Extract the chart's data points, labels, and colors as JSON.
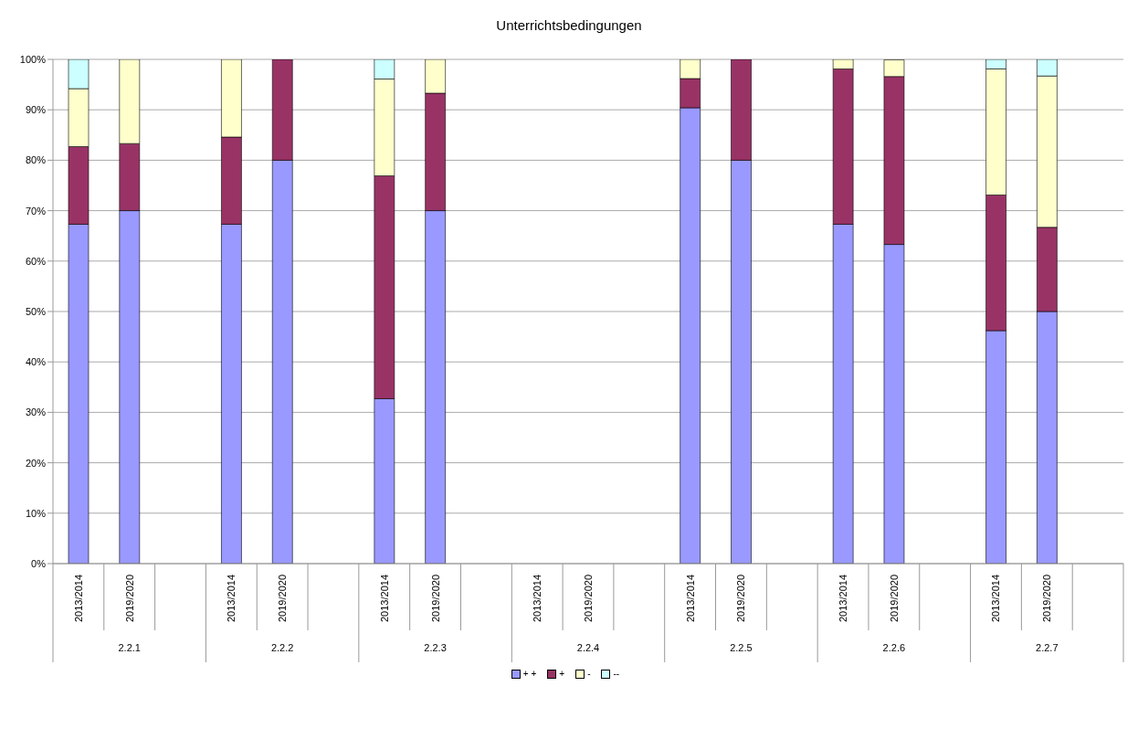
{
  "chart_data": {
    "type": "bar",
    "title": "Unterrichtsbedingungen",
    "stacked": true,
    "categories": [
      "2013/2014",
      "2019/2020",
      null,
      "2013/2014",
      "2019/2020",
      null,
      "2013/2014",
      "2019/2020",
      null,
      "2013/2014",
      "2019/2020",
      null,
      "2013/2014",
      "2019/2020",
      null,
      "2013/2014",
      "2019/2020",
      null,
      "2013/2014",
      "2019/2020",
      null
    ],
    "annotations": [
      "2.2.1",
      "2.2.2",
      "2.2.3",
      "2.2.4",
      "2.2.5",
      "2.2.6",
      "2.2.7"
    ],
    "series": [
      {
        "name": "+ +",
        "color": "#9999ff",
        "values": [
          67.3,
          70,
          null,
          67.3,
          80,
          null,
          32.7,
          70,
          null,
          null,
          null,
          null,
          90.4,
          80,
          null,
          67.3,
          63.3,
          null,
          46.2,
          50,
          null
        ]
      },
      {
        "name": "+",
        "color": "#993366",
        "values": [
          15.4,
          13.3,
          null,
          17.3,
          20,
          null,
          44.2,
          23.3,
          null,
          null,
          null,
          null,
          5.8,
          20,
          null,
          30.8,
          33.3,
          null,
          26.9,
          16.7,
          null
        ]
      },
      {
        "name": "-",
        "color": "#ffffcc",
        "values": [
          11.5,
          16.7,
          null,
          15.4,
          0,
          null,
          19.2,
          6.7,
          null,
          null,
          null,
          null,
          3.8,
          0,
          null,
          1.9,
          3.3,
          null,
          25,
          30,
          null
        ]
      },
      {
        "name": "--",
        "color": "#ccffff",
        "values": [
          5.8,
          0,
          null,
          0,
          0,
          null,
          3.9,
          0,
          null,
          null,
          null,
          null,
          0,
          0,
          null,
          0,
          0,
          null,
          1.9,
          3.3,
          null
        ]
      }
    ],
    "ylim": [
      0,
      100
    ],
    "yticks": [
      {
        "value": 0,
        "label": "0%"
      },
      {
        "value": 10,
        "label": "10%"
      },
      {
        "value": 20,
        "label": "20%"
      },
      {
        "value": 30,
        "label": "30%"
      },
      {
        "value": 40,
        "label": "40%"
      },
      {
        "value": 50,
        "label": "50%"
      },
      {
        "value": 60,
        "label": "60%"
      },
      {
        "value": 70,
        "label": "70%"
      },
      {
        "value": 80,
        "label": "80%"
      },
      {
        "value": 90,
        "label": "90%"
      },
      {
        "value": 100,
        "label": "100%"
      }
    ],
    "grid": "y",
    "legend": "bottom"
  }
}
